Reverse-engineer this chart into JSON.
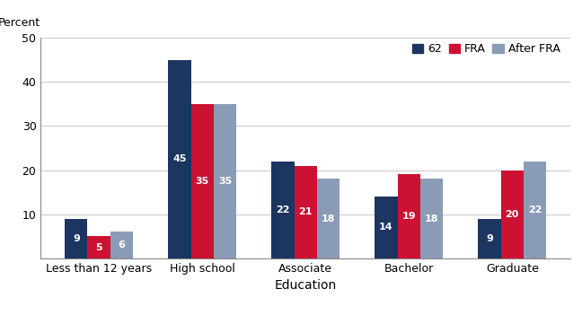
{
  "category_labels": [
    "Less than 12 years",
    "High school",
    "Associate",
    "Bachelor",
    "Graduate"
  ],
  "xlabel": "Education",
  "series": {
    "62": [
      9,
      45,
      22,
      14,
      9
    ],
    "FRA": [
      5,
      35,
      21,
      19,
      20
    ],
    "After FRA": [
      6,
      35,
      18,
      18,
      22
    ]
  },
  "colors": {
    "62": "#1c3561",
    "FRA": "#cc1133",
    "After FRA": "#8a9bb5"
  },
  "legend_labels": [
    "62",
    "FRA",
    "After FRA"
  ],
  "ylim": [
    0,
    50
  ],
  "yticks": [
    0,
    10,
    20,
    30,
    40,
    50
  ],
  "bar_width": 0.22,
  "label_fontsize": 8,
  "axis_fontsize": 9,
  "xlabel_fontsize": 10,
  "legend_fontsize": 9,
  "percent_label_fontsize": 9,
  "background_color": "#ffffff"
}
